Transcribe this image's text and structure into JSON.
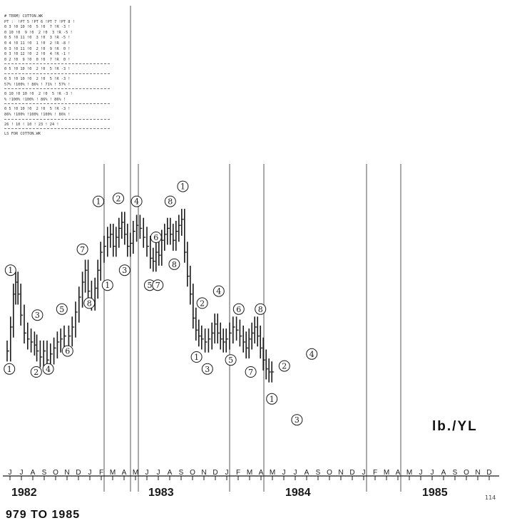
{
  "table": {
    "lines": [
      "# TERM) COTTON.WK",
      "PT :  !PT 5 !PT 6 !PT 7 !PT 8 !",
      "0 3 !0 10 !0  5 !0  7 !R -3 !",
      "0 10 !0  9 !0  2 !0  3 !R -5 !",
      "0 5 !0 11 !0  3 !0  3 !R -5 !",
      "0 4 !0 11 !0  1 !0  2 !R -8 !",
      "0 3 !0 11 !0  2 !0  9 !R  0 !",
      "0 3 !0 12 !0  2 !0  4 !R -1 !",
      "0 2 !0  9 !0  0 !0  7 !R  0 !",
      "---",
      "0 5 !0 10 !0  2 !0  5 !R -3 !",
      "---",
      "0 5 !0 10 !0  2 !0  5 !R -3 !",
      "57% !100% ! 86% ! 71% ! 57% !",
      "---",
      "0 10 !0 10 !0  2 !0  5 !R -3 !",
      "% !100% !100% ! 86% ! 86% !",
      "---",
      "0 5 !0 10 !0  2 !0  5 !R -3 !",
      "86% !100% !100% !100% ! 86% !",
      "---",
      "26 ! 10 ! 10 ! 23 ! 24 !",
      "---",
      "LS FOR COTTON.WK"
    ]
  },
  "chart_data": {
    "type": "ohlc",
    "title": "",
    "xlabel": "",
    "ylabel": "lb./YL",
    "x_start": "1982-06",
    "x_end": "1985-12",
    "month_letters": [
      "J",
      "J",
      "A",
      "S",
      "O",
      "N",
      "D",
      "J",
      "F",
      "M",
      "A",
      "M",
      "J",
      "J",
      "A",
      "S",
      "O",
      "N",
      "D",
      "J",
      "F",
      "M",
      "A",
      "M",
      "J",
      "J",
      "A",
      "S",
      "O",
      "N",
      "D",
      "J",
      "F",
      "M",
      "A",
      "M",
      "J",
      "J",
      "A",
      "S",
      "O",
      "N",
      "D"
    ],
    "year_labels": [
      {
        "label": "1982",
        "month": "1982-07"
      },
      {
        "label": "1983",
        "month": "1983-07"
      },
      {
        "label": "1984",
        "month": "1984-07"
      },
      {
        "label": "1985",
        "month": "1985-07"
      }
    ],
    "vertical_lines": [
      "1983-02",
      "1983-05",
      "1984-01",
      "1984-04",
      "1985-01",
      "1985-04"
    ],
    "weekly_close": [
      {
        "x": 0.0,
        "y": 0.47
      },
      {
        "x": 0.3,
        "y": 0.55
      },
      {
        "x": 0.55,
        "y": 0.66
      },
      {
        "x": 0.75,
        "y": 0.7
      },
      {
        "x": 0.95,
        "y": 0.66
      },
      {
        "x": 1.2,
        "y": 0.59
      },
      {
        "x": 1.5,
        "y": 0.53
      },
      {
        "x": 1.8,
        "y": 0.51
      },
      {
        "x": 2.1,
        "y": 0.5
      },
      {
        "x": 2.4,
        "y": 0.49
      },
      {
        "x": 2.6,
        "y": 0.47
      },
      {
        "x": 2.9,
        "y": 0.45
      },
      {
        "x": 3.2,
        "y": 0.47
      },
      {
        "x": 3.5,
        "y": 0.44
      },
      {
        "x": 3.8,
        "y": 0.46
      },
      {
        "x": 4.1,
        "y": 0.48
      },
      {
        "x": 4.4,
        "y": 0.5
      },
      {
        "x": 4.7,
        "y": 0.51
      },
      {
        "x": 5.0,
        "y": 0.52
      },
      {
        "x": 5.4,
        "y": 0.52
      },
      {
        "x": 5.7,
        "y": 0.55
      },
      {
        "x": 6.0,
        "y": 0.6
      },
      {
        "x": 6.3,
        "y": 0.65
      },
      {
        "x": 6.6,
        "y": 0.7
      },
      {
        "x": 6.85,
        "y": 0.74
      },
      {
        "x": 7.1,
        "y": 0.67
      },
      {
        "x": 7.4,
        "y": 0.64
      },
      {
        "x": 7.7,
        "y": 0.68
      },
      {
        "x": 7.95,
        "y": 0.74
      },
      {
        "x": 8.2,
        "y": 0.8
      },
      {
        "x": 8.5,
        "y": 0.82
      },
      {
        "x": 8.8,
        "y": 0.85
      },
      {
        "x": 9.05,
        "y": 0.86
      },
      {
        "x": 9.3,
        "y": 0.82
      },
      {
        "x": 9.55,
        "y": 0.85
      },
      {
        "x": 9.8,
        "y": 0.88
      },
      {
        "x": 10.05,
        "y": 0.9
      },
      {
        "x": 10.3,
        "y": 0.86
      },
      {
        "x": 10.55,
        "y": 0.82
      },
      {
        "x": 10.8,
        "y": 0.83
      },
      {
        "x": 11.05,
        "y": 0.87
      },
      {
        "x": 11.35,
        "y": 0.89
      },
      {
        "x": 11.65,
        "y": 0.88
      },
      {
        "x": 11.95,
        "y": 0.85
      },
      {
        "x": 12.25,
        "y": 0.82
      },
      {
        "x": 12.55,
        "y": 0.78
      },
      {
        "x": 12.8,
        "y": 0.77
      },
      {
        "x": 13.05,
        "y": 0.8
      },
      {
        "x": 13.3,
        "y": 0.79
      },
      {
        "x": 13.55,
        "y": 0.84
      },
      {
        "x": 13.8,
        "y": 0.86
      },
      {
        "x": 14.05,
        "y": 0.88
      },
      {
        "x": 14.3,
        "y": 0.86
      },
      {
        "x": 14.55,
        "y": 0.84
      },
      {
        "x": 14.8,
        "y": 0.87
      },
      {
        "x": 15.05,
        "y": 0.89
      },
      {
        "x": 15.3,
        "y": 0.91
      },
      {
        "x": 15.55,
        "y": 0.8
      },
      {
        "x": 15.8,
        "y": 0.72
      },
      {
        "x": 16.05,
        "y": 0.66
      },
      {
        "x": 16.3,
        "y": 0.58
      },
      {
        "x": 16.55,
        "y": 0.54
      },
      {
        "x": 16.8,
        "y": 0.52
      },
      {
        "x": 17.05,
        "y": 0.51
      },
      {
        "x": 17.35,
        "y": 0.5
      },
      {
        "x": 17.65,
        "y": 0.51
      },
      {
        "x": 17.95,
        "y": 0.53
      },
      {
        "x": 18.2,
        "y": 0.56
      },
      {
        "x": 18.45,
        "y": 0.53
      },
      {
        "x": 18.7,
        "y": 0.51
      },
      {
        "x": 18.95,
        "y": 0.5
      },
      {
        "x": 19.2,
        "y": 0.51
      },
      {
        "x": 19.5,
        "y": 0.53
      },
      {
        "x": 19.8,
        "y": 0.55
      },
      {
        "x": 20.1,
        "y": 0.54
      },
      {
        "x": 20.4,
        "y": 0.52
      },
      {
        "x": 20.7,
        "y": 0.5
      },
      {
        "x": 20.95,
        "y": 0.48
      },
      {
        "x": 21.2,
        "y": 0.51
      },
      {
        "x": 21.45,
        "y": 0.53
      },
      {
        "x": 21.7,
        "y": 0.55
      },
      {
        "x": 21.95,
        "y": 0.52
      },
      {
        "x": 22.2,
        "y": 0.48
      },
      {
        "x": 22.45,
        "y": 0.44
      },
      {
        "x": 22.7,
        "y": 0.41
      },
      {
        "x": 22.95,
        "y": 0.4
      },
      {
        "x": 23.2,
        "y": 0.4
      }
    ],
    "wave_labels": [
      {
        "label": "1",
        "x": 0.3,
        "y": 0.74
      },
      {
        "label": "1",
        "x": 0.2,
        "y": 0.41
      },
      {
        "label": "3",
        "x": 2.65,
        "y": 0.59
      },
      {
        "label": "2",
        "x": 2.55,
        "y": 0.4
      },
      {
        "label": "4",
        "x": 3.6,
        "y": 0.41
      },
      {
        "label": "5",
        "x": 4.8,
        "y": 0.61
      },
      {
        "label": "6",
        "x": 5.3,
        "y": 0.47
      },
      {
        "label": "7",
        "x": 6.6,
        "y": 0.81
      },
      {
        "label": "8",
        "x": 7.2,
        "y": 0.63
      },
      {
        "label": "1",
        "x": 8.0,
        "y": 0.97
      },
      {
        "label": "1",
        "x": 8.8,
        "y": 0.69
      },
      {
        "label": "2",
        "x": 9.75,
        "y": 0.98
      },
      {
        "label": "3",
        "x": 10.3,
        "y": 0.74
      },
      {
        "label": "4",
        "x": 11.35,
        "y": 0.97
      },
      {
        "label": "5",
        "x": 12.5,
        "y": 0.69
      },
      {
        "label": "7",
        "x": 13.2,
        "y": 0.69
      },
      {
        "label": "6",
        "x": 13.05,
        "y": 0.85
      },
      {
        "label": "8",
        "x": 14.3,
        "y": 0.97
      },
      {
        "label": "8",
        "x": 14.65,
        "y": 0.76
      },
      {
        "label": "1",
        "x": 15.4,
        "y": 1.02
      },
      {
        "label": "2",
        "x": 17.1,
        "y": 0.63
      },
      {
        "label": "1",
        "x": 16.6,
        "y": 0.45
      },
      {
        "label": "3",
        "x": 17.55,
        "y": 0.41
      },
      {
        "label": "4",
        "x": 18.55,
        "y": 0.67
      },
      {
        "label": "5",
        "x": 19.6,
        "y": 0.44
      },
      {
        "label": "6",
        "x": 20.3,
        "y": 0.61
      },
      {
        "label": "7",
        "x": 21.35,
        "y": 0.4
      },
      {
        "label": "8",
        "x": 22.2,
        "y": 0.61
      },
      {
        "label": "1",
        "x": 23.2,
        "y": 0.31
      },
      {
        "label": "2",
        "x": 24.3,
        "y": 0.42
      },
      {
        "label": "3",
        "x": 25.4,
        "y": 0.24
      },
      {
        "label": "4",
        "x": 26.7,
        "y": 0.46
      }
    ]
  },
  "labels": {
    "bottom_title": "979  TO  1985",
    "unit": "lb./YL",
    "page_number": "114"
  },
  "colors": {
    "ink": "#1a1a1a",
    "paper": "#ffffff",
    "faint": "#888888"
  }
}
